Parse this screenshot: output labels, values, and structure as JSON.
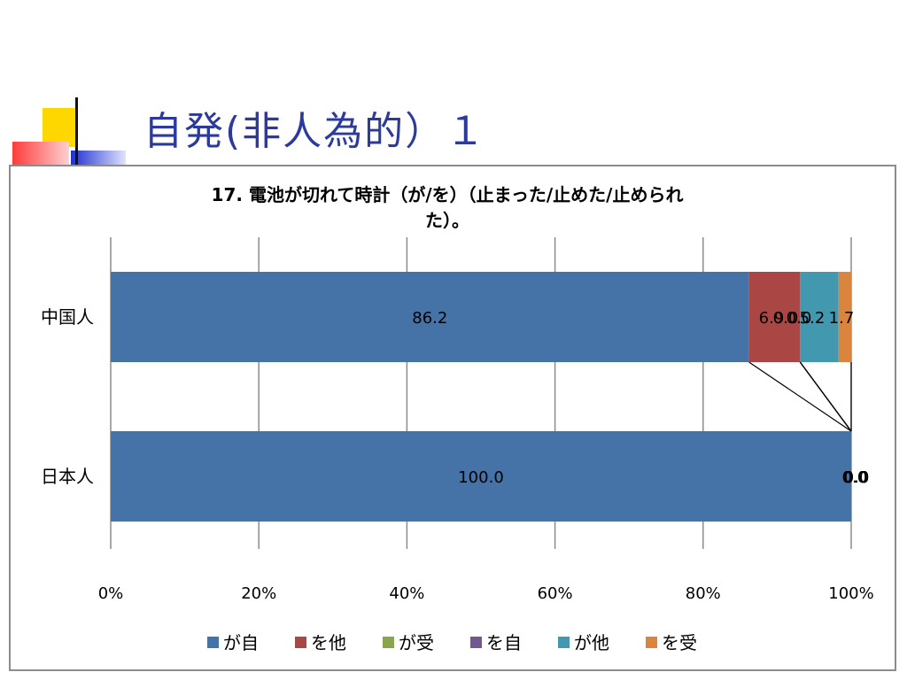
{
  "slide": {
    "title": "自発(非人為的）１"
  },
  "colors": {
    "title": "#2b3a9c",
    "deco_yellow": "#ffd700",
    "deco_red": "#ff4b4b",
    "deco_blue": "#1f2fd0"
  },
  "chart_data": {
    "type": "bar",
    "orientation": "horizontal",
    "stacked": "percent",
    "title_line1": "17. 電池が切れて時計（が/を）（止まった/止めた/止められ",
    "title_line2": "た）。",
    "categories": [
      "中国人",
      "日本人"
    ],
    "series": [
      {
        "name": "が自",
        "color": "#4572a7",
        "values": [
          86.2,
          100.0
        ],
        "labels": [
          "86.2",
          "100.0"
        ]
      },
      {
        "name": "を他",
        "color": "#aa4643",
        "values": [
          6.9,
          0.0
        ],
        "labels": [
          "6.9",
          "0.0"
        ]
      },
      {
        "name": "が受",
        "color": "#89a54e",
        "values": [
          0.0,
          0.0
        ],
        "labels": [
          "0.0",
          "0.0"
        ]
      },
      {
        "name": "を自",
        "color": "#71588f",
        "values": [
          0.0,
          0.0
        ],
        "labels": [
          "0.0",
          "0.0"
        ]
      },
      {
        "name": "が他",
        "color": "#4198af",
        "values": [
          5.2,
          0.0
        ],
        "labels": [
          "5.2",
          "0.0"
        ]
      },
      {
        "name": "を受",
        "color": "#db843d",
        "values": [
          1.7,
          0.0
        ],
        "labels": [
          "1.7",
          "0.0"
        ]
      }
    ],
    "x_ticks": [
      "0%",
      "20%",
      "40%",
      "60%",
      "80%",
      "100%"
    ],
    "xlim": [
      0,
      100
    ],
    "grid": true,
    "legend": "bottom"
  }
}
